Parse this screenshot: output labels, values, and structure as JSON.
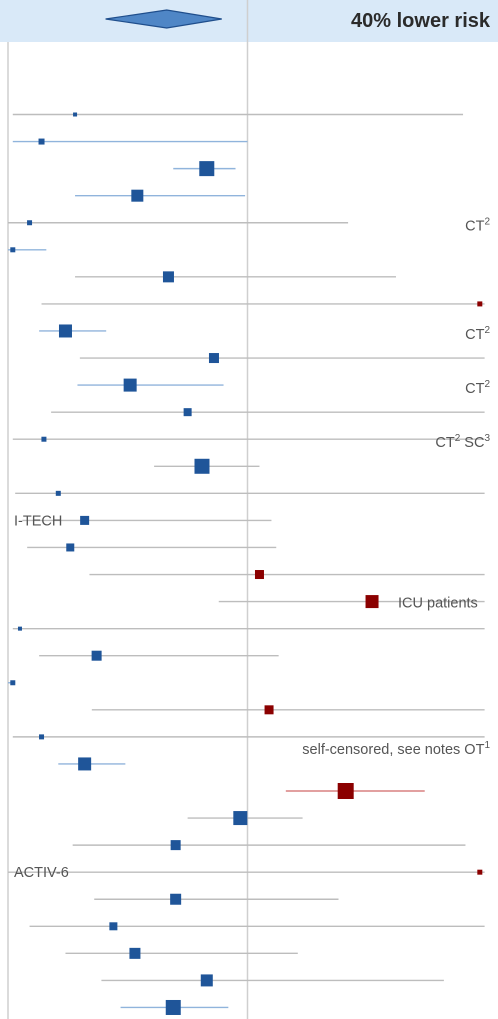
{
  "chart_data": {
    "type": "forest",
    "xlim": [
      0,
      1.9
    ],
    "reference_value": 1.0,
    "grid": false,
    "colors": {
      "header_band": "#d9e9f8",
      "summary_diamond": "#4f86c6",
      "summary_outline": "#1f4e8c",
      "square_normal": "#1f5599",
      "square_flagged": "#8b0000",
      "ci_blue": "#90b4dc",
      "ci_grey": "#bdbdbd",
      "ci_red": "#d98080",
      "reference_line": "#cfcfcf",
      "left_axis": "#cfcfcf"
    },
    "summary": {
      "estimate": 0.6,
      "ci": [
        0.42,
        0.88
      ],
      "label": "40% lower risk"
    },
    "studies": [
      {
        "est": 0.28,
        "ci": [
          0.02,
          1.9
        ],
        "size": 4,
        "color": "normal",
        "ci_style": "grey",
        "annotation": ""
      },
      {
        "est": 0.14,
        "ci": [
          0.02,
          1.0
        ],
        "size": 6,
        "color": "normal",
        "ci_style": "blue",
        "annotation": ""
      },
      {
        "est": 0.83,
        "ci": [
          0.69,
          0.95
        ],
        "size": 15,
        "color": "normal",
        "ci_style": "blue",
        "annotation": ""
      },
      {
        "est": 0.54,
        "ci": [
          0.28,
          0.99
        ],
        "size": 12,
        "color": "normal",
        "ci_style": "blue",
        "annotation": ""
      },
      {
        "est": 0.09,
        "ci": [
          0.0,
          1.42
        ],
        "size": 5,
        "color": "normal",
        "ci_style": "grey",
        "annotation": "CT",
        "annotation_sup": "2"
      },
      {
        "est": 0.02,
        "ci": [
          0.0,
          0.16
        ],
        "size": 5,
        "color": "normal",
        "ci_style": "blue",
        "annotation": ""
      },
      {
        "est": 0.67,
        "ci": [
          0.28,
          1.62
        ],
        "size": 11,
        "color": "normal",
        "ci_style": "grey",
        "annotation": ""
      },
      {
        "est": 1.97,
        "ci": [
          0.14,
          1.99
        ],
        "size": 5,
        "color": "flagged",
        "ci_style": "grey",
        "annotation": ""
      },
      {
        "est": 0.24,
        "ci": [
          0.13,
          0.41
        ],
        "size": 13,
        "color": "normal",
        "ci_style": "blue",
        "annotation": "CT",
        "annotation_sup": "2"
      },
      {
        "est": 0.86,
        "ci": [
          0.3,
          1.99
        ],
        "size": 10,
        "color": "normal",
        "ci_style": "grey",
        "annotation": ""
      },
      {
        "est": 0.51,
        "ci": [
          0.29,
          0.9
        ],
        "size": 13,
        "color": "normal",
        "ci_style": "blue",
        "annotation": "CT",
        "annotation_sup": "2"
      },
      {
        "est": 0.75,
        "ci": [
          0.18,
          1.99
        ],
        "size": 8,
        "color": "normal",
        "ci_style": "grey",
        "annotation": ""
      },
      {
        "est": 0.15,
        "ci": [
          0.02,
          1.99
        ],
        "size": 5,
        "color": "normal",
        "ci_style": "grey",
        "annotation": "CT",
        "annotation_sup": "2",
        "annotation2": "SC",
        "annotation2_sup": "3"
      },
      {
        "est": 0.81,
        "ci": [
          0.61,
          1.05
        ],
        "size": 15,
        "color": "normal",
        "ci_style": "grey",
        "annotation": ""
      },
      {
        "est": 0.21,
        "ci": [
          0.03,
          1.99
        ],
        "size": 5,
        "color": "normal",
        "ci_style": "grey",
        "annotation": ""
      },
      {
        "est": 0.32,
        "ci": [
          0.06,
          1.1
        ],
        "size": 9,
        "color": "normal",
        "ci_style": "grey",
        "annotation": "I-TECH",
        "annotation_side": "left"
      },
      {
        "est": 0.26,
        "ci": [
          0.08,
          1.12
        ],
        "size": 8,
        "color": "normal",
        "ci_style": "grey",
        "annotation": ""
      },
      {
        "est": 1.05,
        "ci": [
          0.34,
          1.99
        ],
        "size": 9,
        "color": "flagged",
        "ci_style": "grey",
        "annotation": ""
      },
      {
        "est": 1.52,
        "ci": [
          0.88,
          1.99
        ],
        "size": 13,
        "color": "flagged",
        "ci_style": "grey",
        "annotation": "ICU patients"
      },
      {
        "est": 0.05,
        "ci": [
          0.02,
          1.99
        ],
        "size": 4,
        "color": "normal",
        "ci_style": "grey",
        "annotation": ""
      },
      {
        "est": 0.37,
        "ci": [
          0.13,
          1.13
        ],
        "size": 10,
        "color": "normal",
        "ci_style": "grey",
        "annotation": ""
      },
      {
        "est": 0.02,
        "ci": [
          0.0,
          0.03
        ],
        "size": 5,
        "color": "normal",
        "ci_style": "blue",
        "annotation": ""
      },
      {
        "est": 1.09,
        "ci": [
          0.35,
          1.99
        ],
        "size": 9,
        "color": "normal_red",
        "ci_style": "grey",
        "annotation": ""
      },
      {
        "est": 0.14,
        "ci": [
          0.02,
          1.99
        ],
        "size": 5,
        "color": "normal",
        "ci_style": "grey",
        "annotation": ""
      },
      {
        "est": 0.32,
        "ci": [
          0.21,
          0.49
        ],
        "size": 13,
        "color": "normal",
        "ci_style": "blue",
        "annotation": "self-censored, see notes OT",
        "annotation_sup": "1",
        "annotation_above": true
      },
      {
        "est": 1.41,
        "ci": [
          1.16,
          1.74
        ],
        "size": 16,
        "color": "flagged",
        "ci_style": "red",
        "annotation": ""
      },
      {
        "est": 0.97,
        "ci": [
          0.75,
          1.23
        ],
        "size": 14,
        "color": "normal",
        "ci_style": "grey",
        "annotation": ""
      },
      {
        "est": 0.7,
        "ci": [
          0.27,
          1.91
        ],
        "size": 10,
        "color": "normal",
        "ci_style": "grey",
        "annotation": ""
      },
      {
        "est": 1.97,
        "ci": [
          0.0,
          1.99
        ],
        "size": 5,
        "color": "flagged",
        "ci_style": "grey",
        "annotation": "ACTIV-6",
        "annotation_side": "left"
      },
      {
        "est": 0.7,
        "ci": [
          0.36,
          1.38
        ],
        "size": 11,
        "color": "normal",
        "ci_style": "grey",
        "annotation": ""
      },
      {
        "est": 0.44,
        "ci": [
          0.09,
          1.99
        ],
        "size": 8,
        "color": "normal",
        "ci_style": "grey",
        "annotation": ""
      },
      {
        "est": 0.53,
        "ci": [
          0.24,
          1.21
        ],
        "size": 11,
        "color": "normal",
        "ci_style": "grey",
        "annotation": ""
      },
      {
        "est": 0.83,
        "ci": [
          0.39,
          1.82
        ],
        "size": 12,
        "color": "normal",
        "ci_style": "grey",
        "annotation": ""
      },
      {
        "est": 0.69,
        "ci": [
          0.47,
          0.92
        ],
        "size": 15,
        "color": "normal",
        "ci_style": "blue",
        "annotation": ""
      }
    ]
  }
}
